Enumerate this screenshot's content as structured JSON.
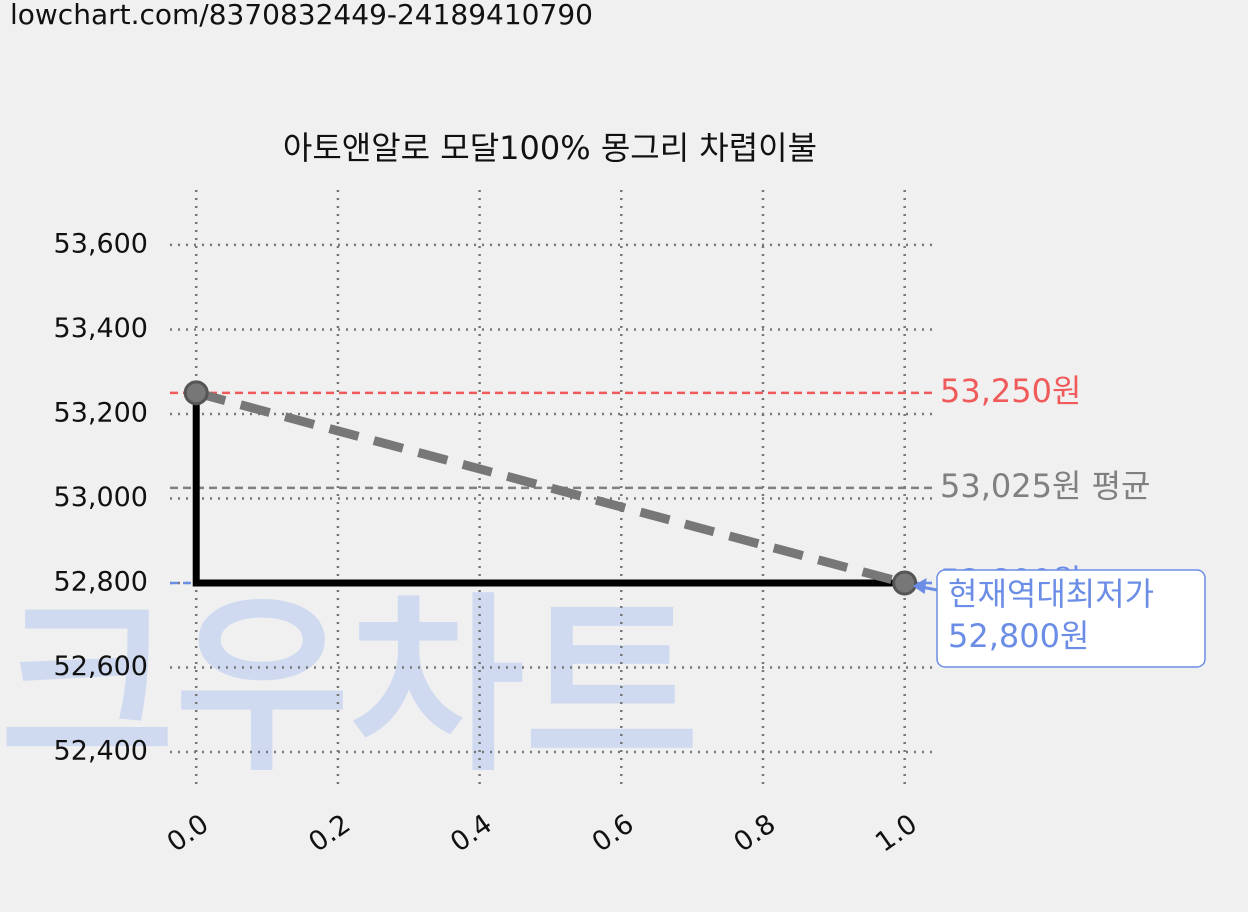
{
  "url": "lowchart.com/8370832449-24189410790",
  "watermark": "크우차트",
  "chart_data": {
    "type": "line",
    "title": "아토앤알로 모달100% 몽그리 차렵이불",
    "x": [
      0,
      1
    ],
    "series": [
      {
        "values": [
          53250,
          52800
        ],
        "color": "#000000",
        "step": "pre"
      },
      {
        "values": [
          53250,
          52800
        ],
        "color": "#777777",
        "dashed": true,
        "markers": true
      }
    ],
    "xlim": [
      -0.037,
      1.04
    ],
    "ylim": [
      52322,
      53730
    ],
    "xticks": [
      {
        "value": 0,
        "label": "0.0"
      },
      0.2,
      0.4,
      0.6,
      0.8,
      {
        "value": 1,
        "label": "1.0"
      }
    ],
    "yticks": [
      {
        "value": 52400,
        "label": "52,400"
      },
      {
        "value": 52600,
        "label": "52,600"
      },
      {
        "value": 52800,
        "label": "52,800"
      },
      {
        "value": 53000,
        "label": "53,000"
      },
      {
        "value": 53200,
        "label": "53,200"
      },
      {
        "value": 53400,
        "label": "53,400"
      },
      {
        "value": 53600,
        "label": "53,600"
      }
    ],
    "grid": true,
    "hlines": [
      {
        "value": 53250,
        "label": "53,250원",
        "color": "#f05a5a"
      },
      {
        "value": 53025,
        "label": "53,025원 평균",
        "color": "#808080"
      },
      {
        "value": 52800,
        "label": "52,800원",
        "color": "#6b8de6"
      }
    ],
    "annotation": {
      "x": 1,
      "y": 52800,
      "lines": [
        "현재역대최저가",
        "52,800원"
      ],
      "color": "#6b8de6"
    }
  }
}
